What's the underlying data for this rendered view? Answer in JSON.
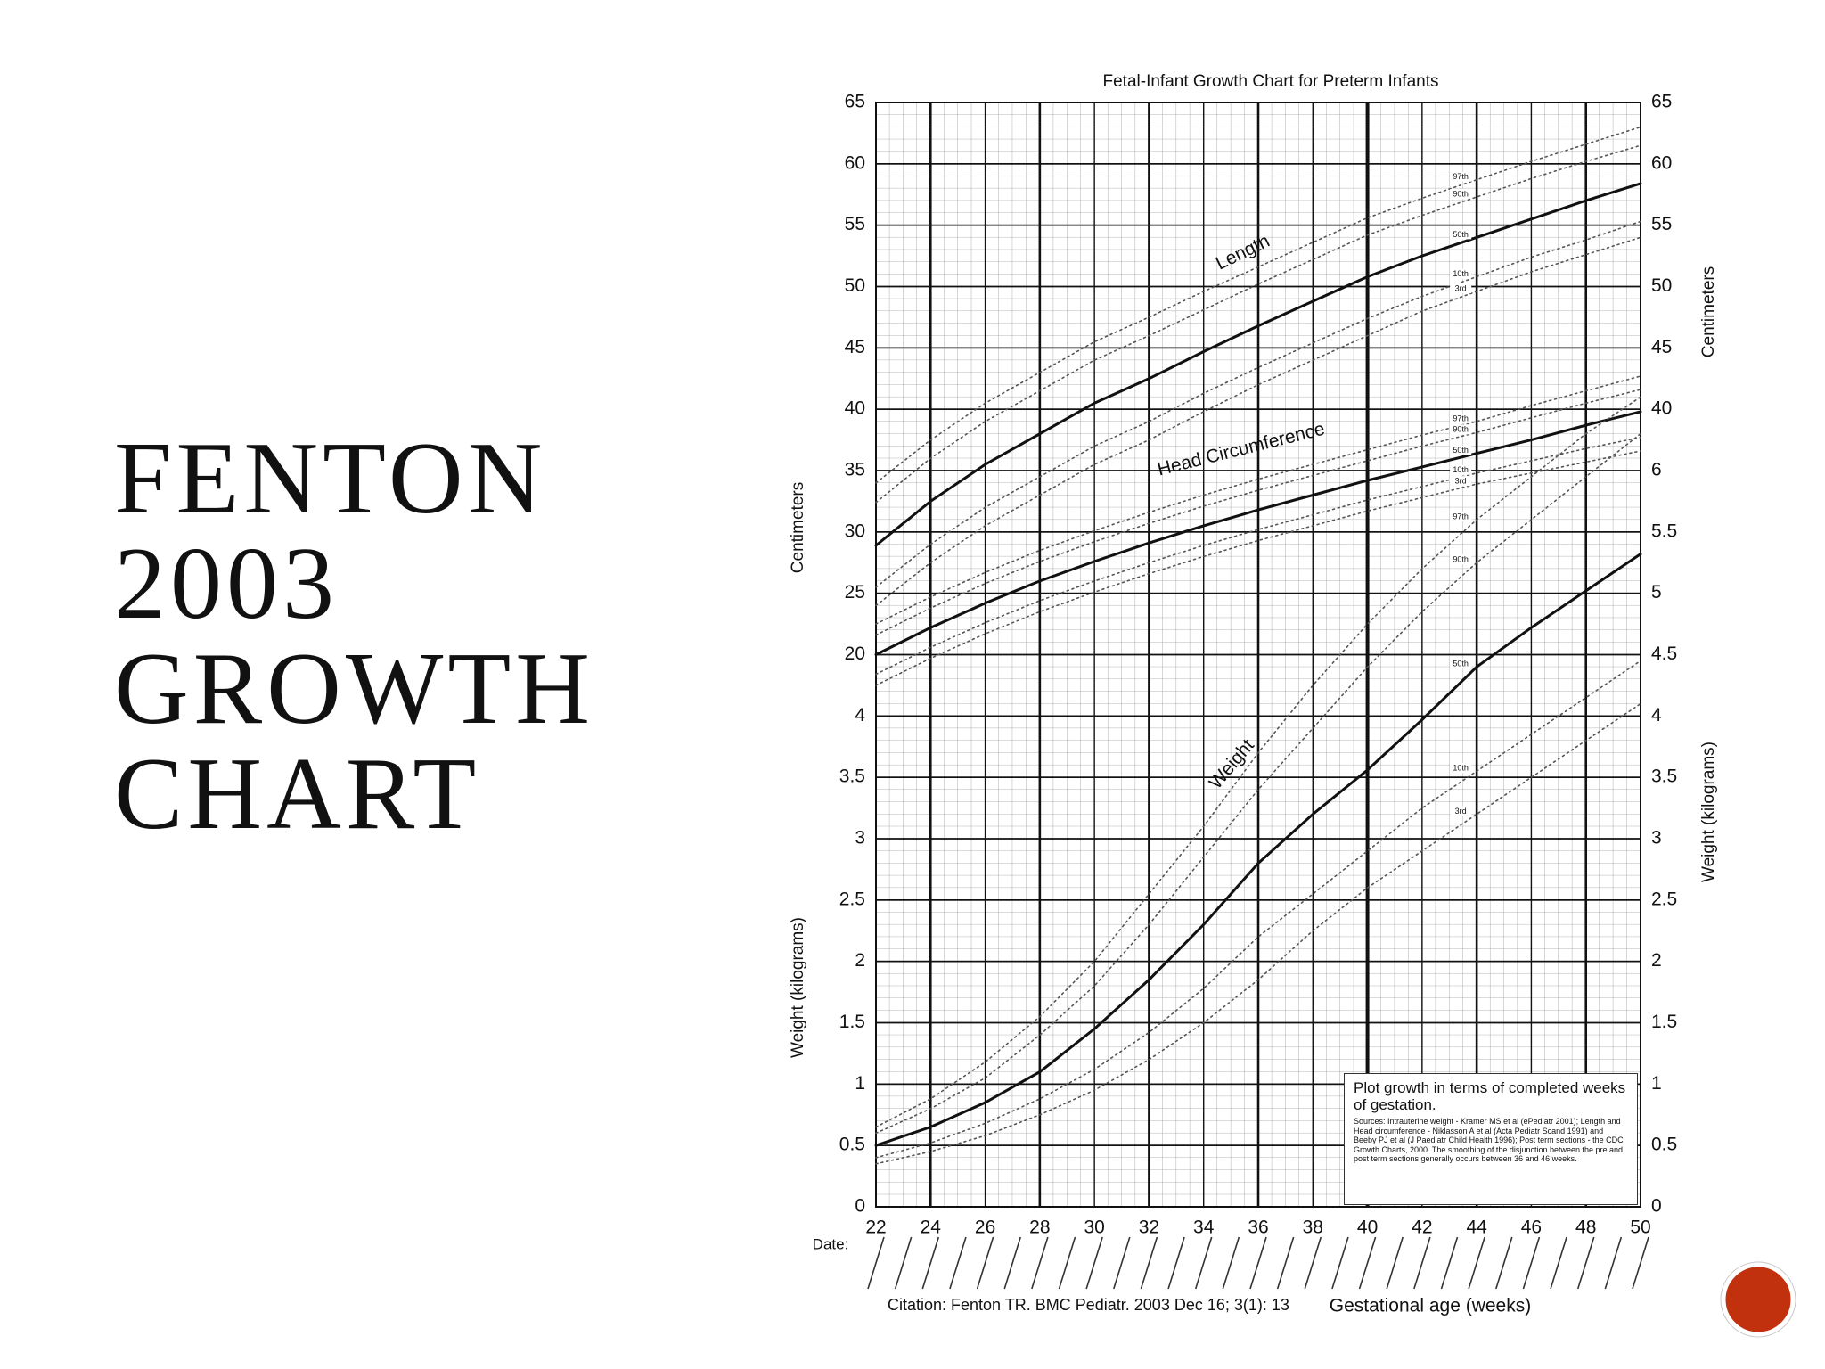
{
  "slide": {
    "title": [
      "FENTON",
      "2003",
      "GROWTH",
      "CHART"
    ]
  },
  "chart_data": [
    {
      "type": "line",
      "title": "Fetal-Infant Growth Chart for Preterm Infants",
      "x_label": "Gestational age (weeks)",
      "date_label": "Date:",
      "citation": "Citation: Fenton TR.  BMC Pediatr. 2003 Dec 16; 3(1): 13",
      "note_title": "Plot growth in terms of completed weeks of gestation.",
      "note_sources": "Sources: Intrauterine weight - Kramer MS et al (ePediatr 2001); Length and Head circumference - Niklasson A et al (Acta Pediatr Scand 1991) and Beeby PJ et al (J Paediatr Child Health 1996); Post term sections - the CDC Growth Charts, 2000.  The smoothing of the disjunction between the pre and post term sections generally occurs between 36 and 46 weeks.",
      "annotation": "Length",
      "xlim": [
        22,
        50
      ],
      "xticks": [
        22,
        24,
        26,
        28,
        30,
        32,
        34,
        36,
        38,
        40,
        42,
        44,
        46,
        48,
        50
      ],
      "y_label": "Centimeters",
      "ylim": [
        -25,
        65
      ],
      "yticks": [
        20,
        25,
        30,
        35,
        40,
        45,
        50,
        55,
        60,
        65
      ],
      "y2_label": "Centimeters",
      "y2lim": [
        -25,
        65
      ],
      "y2ticks": [
        40,
        45,
        50,
        55,
        60,
        65
      ],
      "grid": true,
      "x": [
        22,
        24,
        26,
        28,
        30,
        32,
        34,
        36,
        38,
        40,
        42,
        44,
        46,
        48,
        50
      ],
      "series": [
        {
          "name": "97th",
          "color": "#555555",
          "style": "dotted",
          "values": [
            34,
            37.5,
            40.5,
            43,
            45.5,
            47.5,
            49.6,
            51.6,
            53.6,
            55.6,
            57.2,
            58.7,
            60.2,
            61.6,
            63
          ]
        },
        {
          "name": "90th",
          "color": "#555555",
          "style": "dotted",
          "values": [
            32.4,
            36,
            39,
            41.5,
            44,
            46,
            48.1,
            50.2,
            52.2,
            54.2,
            55.8,
            57.3,
            58.8,
            60.2,
            61.5
          ]
        },
        {
          "name": "50th",
          "color": "#111111",
          "style": "solid",
          "values": [
            28.9,
            32.5,
            35.5,
            38,
            40.5,
            42.5,
            44.7,
            46.8,
            48.8,
            50.8,
            52.5,
            54,
            55.5,
            57,
            58.4
          ]
        },
        {
          "name": "10th",
          "color": "#555555",
          "style": "dotted",
          "values": [
            25.5,
            29,
            32,
            34.5,
            37,
            39,
            41.3,
            43.4,
            45.4,
            47.4,
            49.2,
            50.8,
            52.4,
            53.8,
            55.3
          ]
        },
        {
          "name": "3rd",
          "color": "#555555",
          "style": "dotted",
          "values": [
            24,
            27.5,
            30.5,
            33,
            35.5,
            37.5,
            39.8,
            42,
            44,
            46,
            48,
            49.6,
            51.2,
            52.6,
            54
          ]
        }
      ]
    },
    {
      "type": "line",
      "annotation": "Head Circumference",
      "xlim": [
        22,
        50
      ],
      "ylim": [
        -25,
        65
      ],
      "x": [
        22,
        24,
        26,
        28,
        30,
        32,
        34,
        36,
        38,
        40,
        42,
        44,
        46,
        48,
        50
      ],
      "series": [
        {
          "name": "97th",
          "color": "#555555",
          "style": "dotted",
          "values": [
            22.5,
            24.7,
            26.7,
            28.5,
            30.1,
            31.6,
            33,
            34.3,
            35.5,
            36.7,
            37.9,
            39,
            40.3,
            41.5,
            42.7
          ]
        },
        {
          "name": "90th",
          "color": "#555555",
          "style": "dotted",
          "values": [
            21.6,
            23.8,
            25.8,
            27.6,
            29.2,
            30.7,
            32.1,
            33.4,
            34.6,
            35.8,
            37,
            38.1,
            39.3,
            40.5,
            41.6
          ]
        },
        {
          "name": "50th",
          "color": "#111111",
          "style": "solid",
          "values": [
            20,
            22.2,
            24.2,
            26,
            27.6,
            29.1,
            30.5,
            31.8,
            33,
            34.2,
            35.3,
            36.4,
            37.5,
            38.7,
            39.8
          ]
        },
        {
          "name": "10th",
          "color": "#555555",
          "style": "dotted",
          "values": [
            18.4,
            20.6,
            22.6,
            24.4,
            26,
            27.5,
            28.9,
            30.2,
            31.4,
            32.6,
            33.7,
            34.8,
            35.8,
            36.8,
            37.7
          ]
        },
        {
          "name": "3rd",
          "color": "#555555",
          "style": "dotted",
          "values": [
            17.5,
            19.7,
            21.7,
            23.5,
            25.1,
            26.6,
            28,
            29.3,
            30.5,
            31.7,
            32.8,
            33.9,
            34.8,
            35.7,
            36.6
          ]
        }
      ]
    },
    {
      "type": "line",
      "annotation": "Weight",
      "xlim": [
        22,
        50
      ],
      "y_label": "Weight (kilograms)",
      "ylim": [
        0,
        9
      ],
      "yticks": [
        0,
        0.5,
        1,
        1.5,
        2,
        2.5,
        3,
        3.5,
        4
      ],
      "y2_label": "Weight (kilograms)",
      "y2lim": [
        0,
        9
      ],
      "y2ticks": [
        0,
        0.5,
        1,
        1.5,
        2,
        2.5,
        3,
        3.5,
        4,
        4.5,
        5,
        5.5,
        6
      ],
      "x": [
        22,
        24,
        26,
        28,
        30,
        32,
        34,
        36,
        38,
        40,
        42,
        44,
        46,
        48,
        50
      ],
      "series": [
        {
          "name": "97th",
          "color": "#555555",
          "style": "dotted",
          "values": [
            0.65,
            0.88,
            1.18,
            1.55,
            2,
            2.55,
            3.1,
            3.7,
            4.25,
            4.75,
            5.2,
            5.6,
            5.95,
            6.3,
            6.6
          ]
        },
        {
          "name": "90th",
          "color": "#555555",
          "style": "dotted",
          "values": [
            0.6,
            0.8,
            1.05,
            1.4,
            1.8,
            2.3,
            2.85,
            3.4,
            3.9,
            4.4,
            4.85,
            5.25,
            5.6,
            5.95,
            6.3
          ]
        },
        {
          "name": "50th",
          "color": "#111111",
          "style": "solid",
          "values": [
            0.5,
            0.65,
            0.85,
            1.1,
            1.45,
            1.85,
            2.3,
            2.8,
            3.2,
            3.56,
            3.97,
            4.4,
            4.72,
            5.02,
            5.32
          ]
        },
        {
          "name": "10th",
          "color": "#555555",
          "style": "dotted",
          "values": [
            0.4,
            0.52,
            0.68,
            0.88,
            1.12,
            1.42,
            1.78,
            2.2,
            2.55,
            2.9,
            3.25,
            3.55,
            3.85,
            4.15,
            4.45
          ]
        },
        {
          "name": "3rd",
          "color": "#555555",
          "style": "dotted",
          "values": [
            0.35,
            0.45,
            0.58,
            0.75,
            0.95,
            1.2,
            1.5,
            1.85,
            2.25,
            2.6,
            2.9,
            3.2,
            3.5,
            3.8,
            4.1
          ]
        }
      ]
    }
  ]
}
